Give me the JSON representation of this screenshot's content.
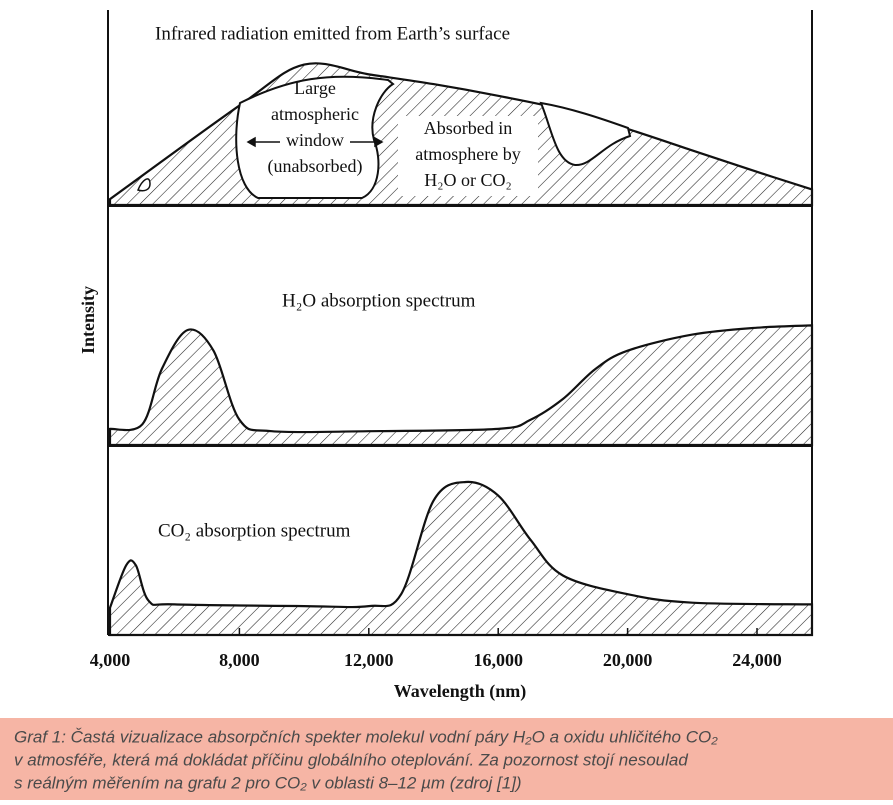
{
  "chart_data": [
    {
      "type": "area",
      "title": "Infrared radiation emitted from Earth’s surface",
      "annotations": [
        [
          "Large",
          "atmospheric",
          "window",
          "(unabsorbed)"
        ],
        [
          "Absorbed in",
          "atmosphere by",
          "H₂O or CO₂"
        ]
      ],
      "x": [
        4000,
        8000,
        10000,
        12000,
        14000,
        16000,
        18000,
        20000,
        22000,
        24000,
        25700
      ],
      "values": [
        0.03,
        0.51,
        0.72,
        0.67,
        0.62,
        0.56,
        0.49,
        0.39,
        0.28,
        0.17,
        0.08
      ],
      "xlim": [
        4000,
        25700
      ],
      "ylim": [
        0,
        1
      ]
    },
    {
      "type": "area",
      "title": "H₂O absorption spectrum",
      "ylabel": "Intensity",
      "x": [
        4000,
        5000,
        5600,
        6400,
        7200,
        8000,
        9000,
        12000,
        16000,
        17000,
        18000,
        19000,
        20000,
        22000,
        24000,
        25700
      ],
      "values": [
        0.07,
        0.09,
        0.33,
        0.5,
        0.41,
        0.11,
        0.06,
        0.06,
        0.07,
        0.11,
        0.2,
        0.33,
        0.41,
        0.48,
        0.51,
        0.52
      ],
      "xlim": [
        4000,
        25700
      ],
      "ylim": [
        0,
        1
      ]
    },
    {
      "type": "area",
      "title": "CO₂ absorption spectrum",
      "xlabel": "Wavelength (nm)",
      "x": [
        4000,
        4500,
        4800,
        5200,
        6000,
        10000,
        12000,
        13000,
        14000,
        15000,
        16000,
        17000,
        18000,
        20000,
        22000,
        25700
      ],
      "values": [
        0.16,
        0.41,
        0.41,
        0.2,
        0.18,
        0.17,
        0.17,
        0.24,
        0.79,
        0.9,
        0.82,
        0.56,
        0.35,
        0.24,
        0.19,
        0.18
      ],
      "xlim": [
        4000,
        25700
      ],
      "ylim": [
        0,
        1
      ],
      "xticks": [
        {
          "value": 4000,
          "label": "4,000"
        },
        {
          "value": 8000,
          "label": "8,000"
        },
        {
          "value": 12000,
          "label": "12,000"
        },
        {
          "value": 16000,
          "label": "16,000"
        },
        {
          "value": 20000,
          "label": "20,000"
        },
        {
          "value": 24000,
          "label": "24,000"
        }
      ]
    }
  ],
  "caption": {
    "lines": [
      "Graf 1: Častá vizualizace absorpčních spekter molekul vodní páry H₂O a oxidu uhličitého CO₂",
      "v atmosféře, která má dokládat příčinu globálního oteplování. Za pozornost stojí nesoulad",
      "s reálným měřením na grafu 2 pro CO₂ v oblasti 8–12 µm (zdroj [1])"
    ]
  }
}
